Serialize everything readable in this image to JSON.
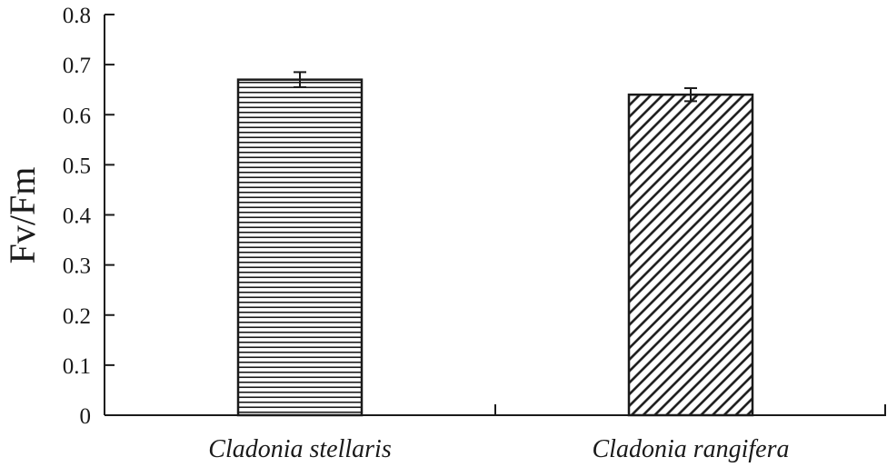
{
  "chart_data": {
    "type": "bar",
    "title": "",
    "xlabel": "",
    "ylabel": "Fv/Fm",
    "ylim": [
      0,
      0.8
    ],
    "yticks": [
      0,
      0.1,
      0.2,
      0.3,
      0.4,
      0.5,
      0.6,
      0.7,
      0.8
    ],
    "yticklabels": [
      "0",
      "0.1",
      "0.2",
      "0.3",
      "0.4",
      "0.5",
      "0.6",
      "0.7",
      "0.8"
    ],
    "categories": [
      "Cladonia stellaris",
      "Cladonia rangifera"
    ],
    "values": [
      0.67,
      0.64
    ],
    "errors": [
      0.015,
      0.013
    ],
    "patterns": [
      "horizontal-hatch",
      "diagonal-hatch"
    ],
    "grid": false,
    "colors": {
      "stroke": "#1a1a1a",
      "fill": "#ffffff"
    }
  }
}
